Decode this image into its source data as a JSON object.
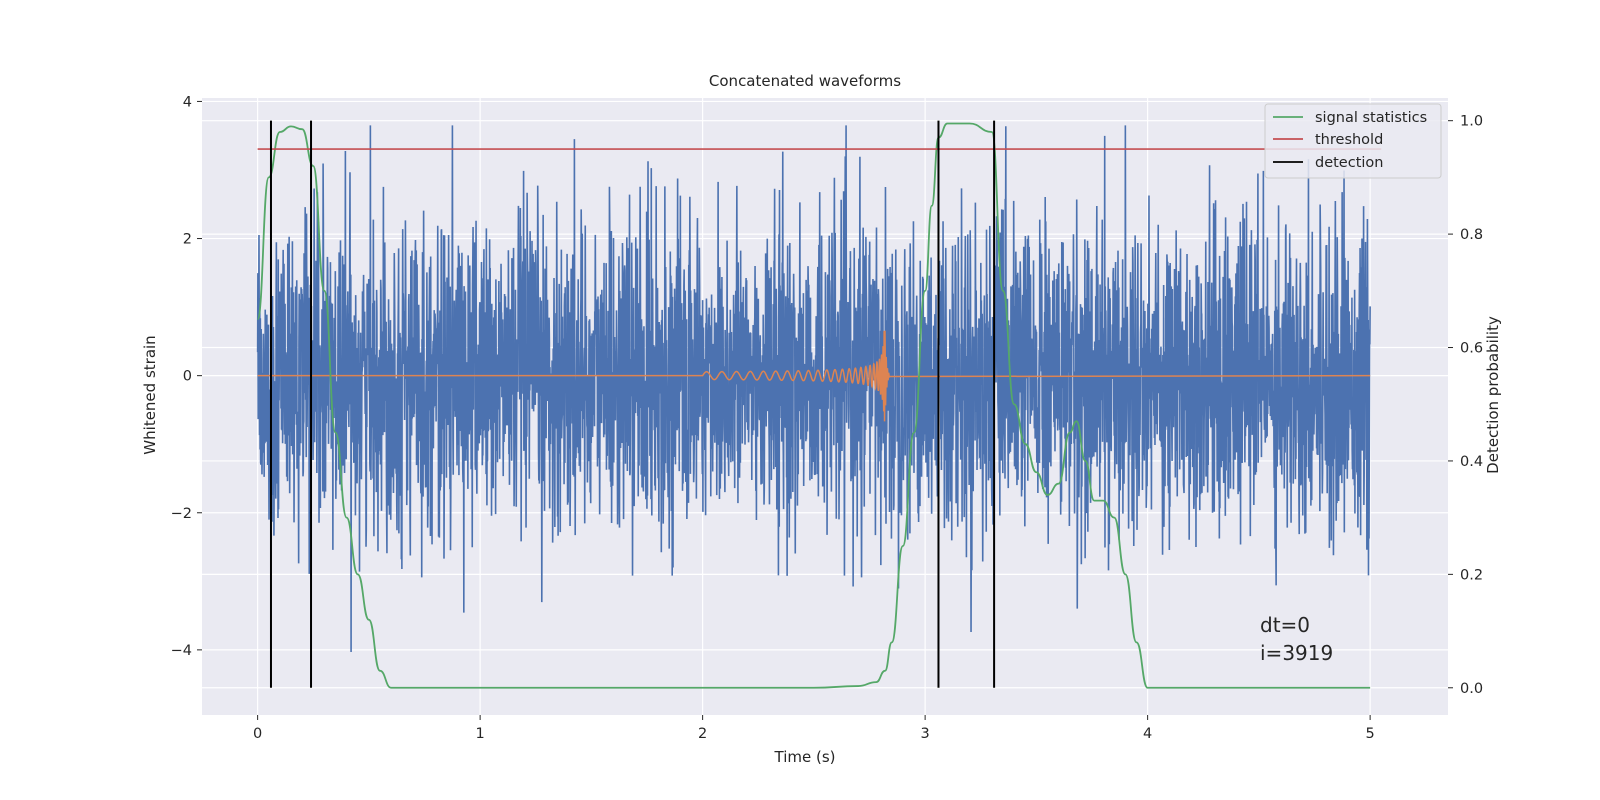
{
  "chart_data": {
    "type": "line",
    "title": "Concatenated waveforms",
    "xlabel": "Time (s)",
    "ylabel_left": "Whitened strain",
    "ylabel_right": "Detection probability",
    "xlim": [
      -0.25,
      5.35
    ],
    "ylim_left": [
      -4.95,
      4.05
    ],
    "ylim_right": [
      -0.048,
      1.04
    ],
    "xticks": [
      0,
      1,
      2,
      3,
      4,
      5
    ],
    "xtick_labels": [
      "0",
      "1",
      "2",
      "3",
      "4",
      "5"
    ],
    "yticks_left": [
      -4,
      -2,
      0,
      2,
      4
    ],
    "ytick_labels_left": [
      "−4",
      "−2",
      "0",
      "2",
      "4"
    ],
    "yticks_right": [
      0.0,
      0.2,
      0.4,
      0.6,
      0.8,
      1.0
    ],
    "ytick_labels_right": [
      "0.0",
      "0.2",
      "0.4",
      "0.6",
      "0.8",
      "1.0"
    ],
    "grid": true,
    "style": "seaborn-darkgrid",
    "legend": {
      "placement": "top-right",
      "entries": [
        "signal statistics",
        "threshold",
        "detection"
      ]
    },
    "series": [
      {
        "name": "signal statistics",
        "axis": "right",
        "color": "#55a868",
        "x": [
          0.0,
          0.05,
          0.1,
          0.15,
          0.2,
          0.25,
          0.3,
          0.35,
          0.4,
          0.45,
          0.5,
          0.55,
          0.6,
          0.7,
          1.0,
          1.5,
          2.0,
          2.5,
          2.7,
          2.78,
          2.82,
          2.85,
          2.9,
          2.95,
          3.0,
          3.03,
          3.06,
          3.1,
          3.2,
          3.3,
          3.35,
          3.4,
          3.45,
          3.5,
          3.55,
          3.6,
          3.65,
          3.68,
          3.72,
          3.76,
          3.8,
          3.85,
          3.9,
          3.95,
          4.0,
          4.2,
          5.0
        ],
        "y": [
          0.65,
          0.9,
          0.98,
          0.99,
          0.985,
          0.92,
          0.7,
          0.45,
          0.3,
          0.2,
          0.12,
          0.03,
          0.0,
          0.0,
          0.0,
          0.0,
          0.0,
          0.0,
          0.003,
          0.01,
          0.03,
          0.08,
          0.25,
          0.45,
          0.7,
          0.85,
          0.97,
          0.995,
          0.995,
          0.98,
          0.7,
          0.5,
          0.43,
          0.38,
          0.34,
          0.36,
          0.45,
          0.47,
          0.4,
          0.33,
          0.33,
          0.3,
          0.2,
          0.08,
          0.0,
          0.0,
          0.0
        ]
      },
      {
        "name": "threshold",
        "axis": "right",
        "color": "#c44e52",
        "x": [
          0.0,
          5.05
        ],
        "y": [
          0.95,
          0.95
        ]
      },
      {
        "name": "detection",
        "axis": "right",
        "color": "#000000",
        "x": [
          0.06,
          0.24,
          3.06,
          3.31
        ],
        "ymin": 0.0,
        "ymax": 1.0
      },
      {
        "axis": "left",
        "color": "#4c72b0",
        "kind": "noise",
        "x_range": [
          0.0,
          5.0
        ],
        "std": 1.1
      },
      {
        "axis": "left",
        "color": "#dd8452",
        "kind": "chirp",
        "x_range": [
          2.0,
          2.84
        ],
        "peak_amplitude": 0.65,
        "merger_time": 2.82
      }
    ],
    "annotations": [
      "dt=0",
      "i=3919"
    ]
  }
}
